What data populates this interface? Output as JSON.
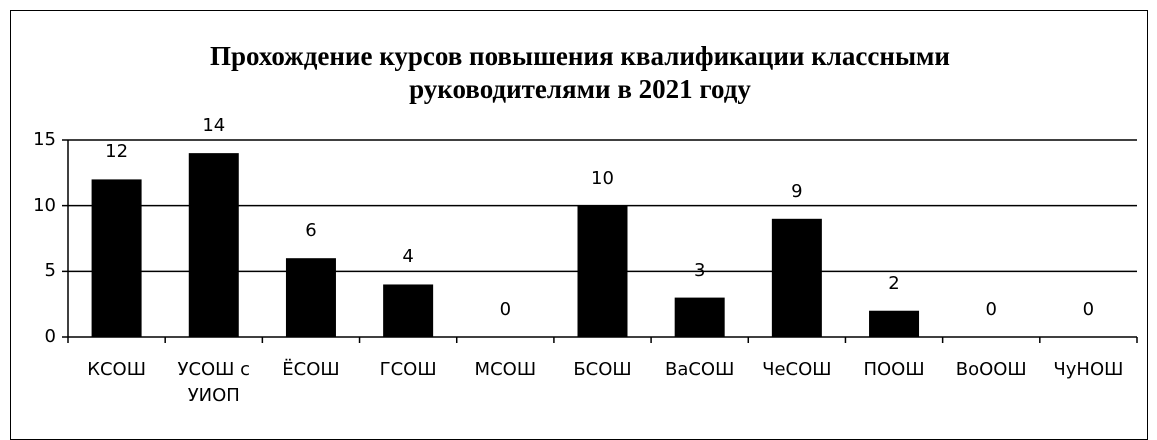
{
  "chart_data": {
    "type": "bar",
    "title": "Прохождение курсов повышения квалификации классными руководителями в 2021 году",
    "categories": [
      "КСОШ",
      "УСОШ с УИОП",
      "ЁСОШ",
      "ГСОШ",
      "МСОШ",
      "БСОШ",
      "ВаСОШ",
      "ЧеСОШ",
      "ПООШ",
      "ВоООШ",
      "ЧуНОШ"
    ],
    "values": [
      12,
      14,
      6,
      4,
      0,
      10,
      3,
      9,
      2,
      0,
      0
    ],
    "color": "#000000",
    "ylim": [
      0,
      15
    ],
    "yticks": [
      0,
      5,
      10,
      15
    ],
    "grid": true
  }
}
